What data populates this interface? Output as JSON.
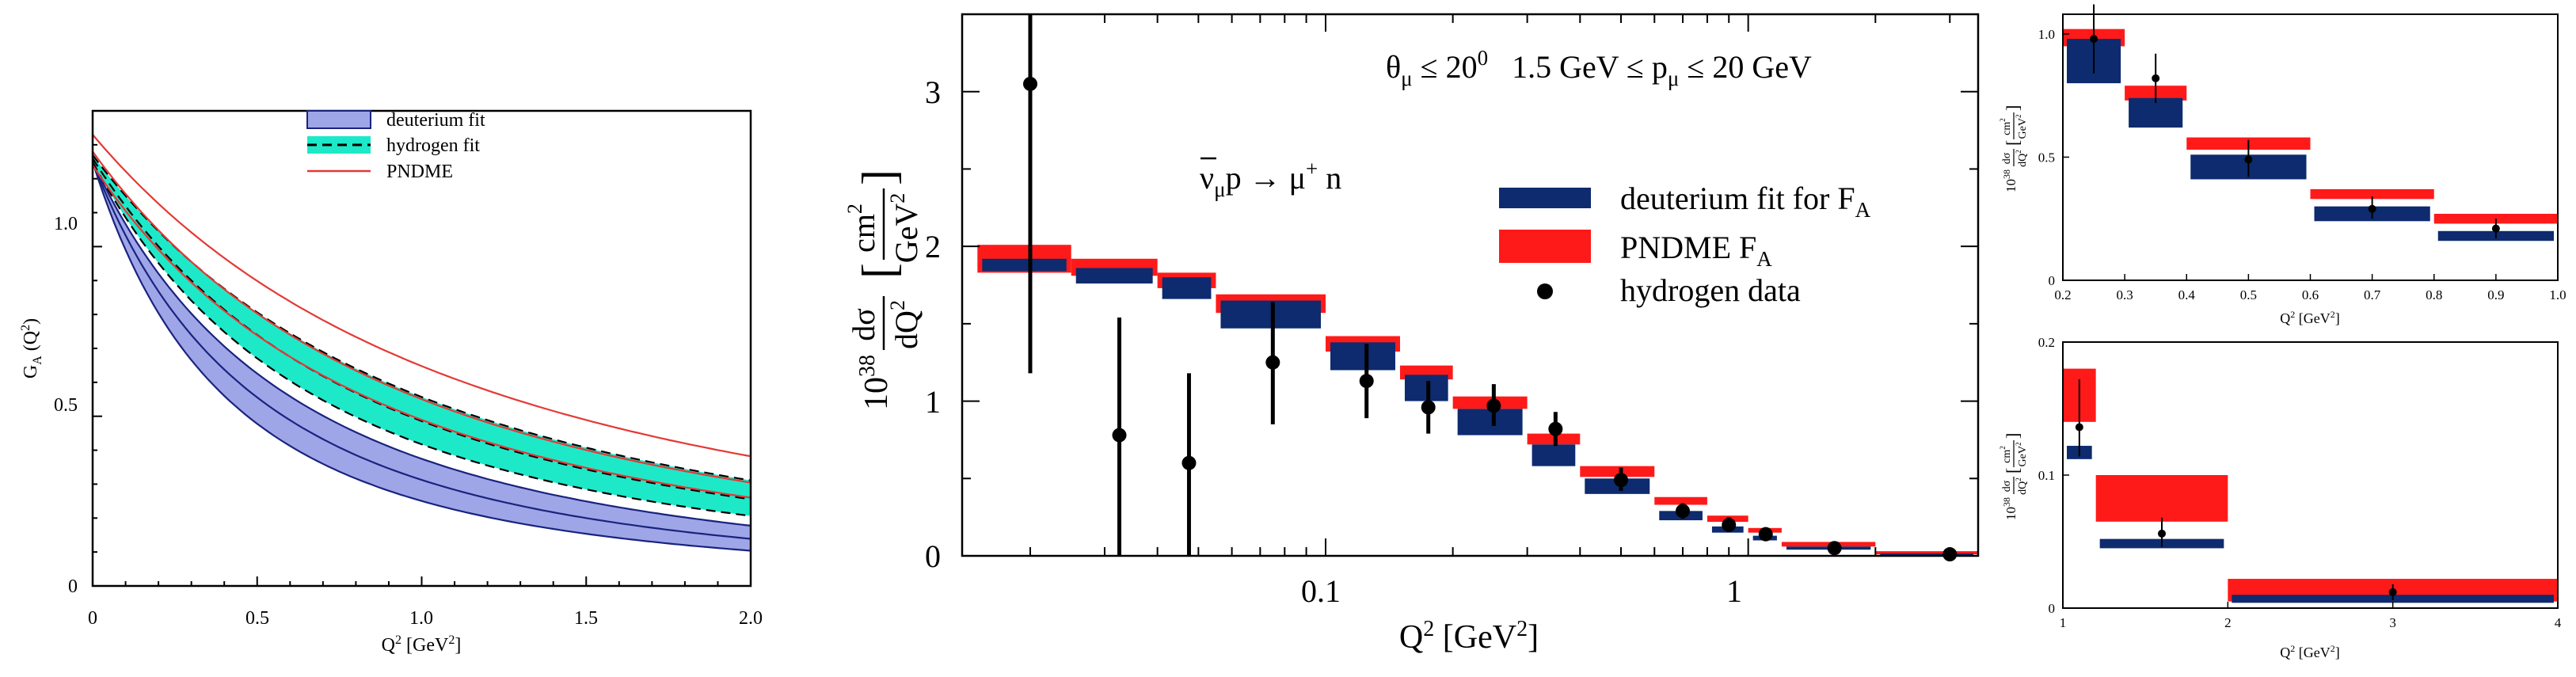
{
  "chart_data": [
    {
      "type": "line",
      "id": "left",
      "ylabel": "G",
      "ylabel_sub": "A",
      "ylabel_arg": " (Q",
      "ylabel_sup": "2",
      "ylabel_close": ")",
      "xlabel": "Q",
      "xlabel_sup": "2",
      "xlabel_unit": " [GeV",
      "xlabel_unit_sup": "2",
      "xlabel_close": "]",
      "xlim": [
        0,
        2
      ],
      "ylim": [
        0,
        1.4
      ],
      "xticks": [
        "0",
        "0.5",
        "1.0",
        "1.5",
        "2.0"
      ],
      "yticks": [
        "0",
        "0.5",
        "1.0"
      ],
      "legend": [
        "deuterium fit",
        "hydrogen fit",
        "PNDME"
      ],
      "colors": {
        "deuterium_fill": "#9fa6e8",
        "deuterium_line": "#1a237e",
        "hydrogen_fill": "#1de9c9",
        "hydrogen_line": "#000000",
        "pndme": "#e53935"
      },
      "series": [
        {
          "name": "deuterium fit (upper)",
          "g0": 1.25,
          "mA": 1.1,
          "x": [
            0,
            0.25,
            0.5,
            0.75,
            1.0,
            1.25,
            1.5,
            1.75,
            2.0
          ]
        },
        {
          "name": "deuterium fit (central)",
          "g0": 1.25,
          "mA": 1.0,
          "x": [
            0,
            0.25,
            0.5,
            0.75,
            1.0,
            1.25,
            1.5,
            1.75,
            2.0
          ]
        },
        {
          "name": "deuterium fit (lower)",
          "g0": 1.25,
          "mA": 0.9,
          "x": [
            0,
            0.25,
            0.5,
            0.75,
            1.0,
            1.25,
            1.5,
            1.75,
            2.0
          ]
        },
        {
          "name": "hydrogen fit (upper)",
          "g0": 1.27,
          "mA": 1.4
        },
        {
          "name": "hydrogen fit (central)",
          "g0": 1.26,
          "mA": 1.28
        },
        {
          "name": "hydrogen fit (lower)",
          "g0": 1.25,
          "mA": 1.17
        },
        {
          "name": "PNDME (upper)",
          "g0": 1.33,
          "mA": 1.52
        },
        {
          "name": "PNDME (central)",
          "g0": 1.28,
          "mA": 1.38
        },
        {
          "name": "PNDME (lower)",
          "g0": 1.24,
          "mA": 1.3
        }
      ]
    },
    {
      "type": "bar",
      "id": "middle",
      "xscale": "log",
      "xlim": [
        0.0138,
        3.5
      ],
      "ylim": [
        0,
        3.5
      ],
      "xticks": [
        "0.1",
        "1"
      ],
      "yticks": [
        "0",
        "1",
        "2",
        "3"
      ],
      "ylabel_prefix": "10",
      "ylabel_exp": "38",
      "ylabel_frac_num": "dσ",
      "ylabel_frac_den": "dQ",
      "ylabel_frac_den_sup": "2",
      "ylabel_unit_num": "cm",
      "ylabel_unit_num_sup": "2",
      "ylabel_unit_den": "GeV",
      "ylabel_unit_den_sup": "2",
      "xlabel": "Q",
      "xlabel_sup": "2",
      "xlabel_unit": " [GeV",
      "xlabel_unit_sup": "2",
      "xlabel_close": "]",
      "title_theta": "θ",
      "title_theta_sub": "μ",
      "title_theta_cond": " ≤ 20",
      "title_theta_sup": "0",
      "title_p_range": "1.5 GeV ≤ p",
      "title_p_sub": "μ",
      "title_p_cond": " ≤ 20 GeV",
      "reaction_nubar": "ν",
      "reaction_nu_sub": "μ",
      "reaction_p": "p → μ",
      "reaction_mu_sup": "+",
      "reaction_n": " n",
      "legend": {
        "deuterium": "deuterium fit for F",
        "deuterium_sub": "A",
        "pndme": "PNDME F",
        "pndme_sub": "A",
        "data": "hydrogen data"
      },
      "colors": {
        "deuterium": "#0d2b6e",
        "pndme": "#ff1a1a",
        "data": "#000000"
      },
      "bins": [
        {
          "lo": 0.015,
          "hi": 0.025,
          "deut": [
            1.84,
            1.92
          ],
          "pndme": [
            1.83,
            2.01
          ]
        },
        {
          "lo": 0.025,
          "hi": 0.04,
          "deut": [
            1.76,
            1.86
          ],
          "pndme": [
            1.81,
            1.92
          ]
        },
        {
          "lo": 0.04,
          "hi": 0.055,
          "deut": [
            1.66,
            1.8
          ],
          "pndme": [
            1.73,
            1.83
          ]
        },
        {
          "lo": 0.055,
          "hi": 0.1,
          "deut": [
            1.47,
            1.65
          ],
          "pndme": [
            1.57,
            1.69
          ]
        },
        {
          "lo": 0.1,
          "hi": 0.15,
          "deut": [
            1.2,
            1.38
          ],
          "pndme": [
            1.32,
            1.42
          ]
        },
        {
          "lo": 0.15,
          "hi": 0.2,
          "deut": [
            1.0,
            1.17
          ],
          "pndme": [
            1.14,
            1.23
          ]
        },
        {
          "lo": 0.2,
          "hi": 0.3,
          "deut": [
            0.78,
            0.95
          ],
          "pndme": [
            0.95,
            1.03
          ]
        },
        {
          "lo": 0.3,
          "hi": 0.4,
          "deut": [
            0.58,
            0.72
          ],
          "pndme": [
            0.72,
            0.79
          ]
        },
        {
          "lo": 0.4,
          "hi": 0.6,
          "deut": [
            0.4,
            0.5
          ],
          "pndme": [
            0.51,
            0.58
          ]
        },
        {
          "lo": 0.6,
          "hi": 0.8,
          "deut": [
            0.23,
            0.29
          ],
          "pndme": [
            0.33,
            0.38
          ]
        },
        {
          "lo": 0.8,
          "hi": 1.0,
          "deut": [
            0.15,
            0.19
          ],
          "pndme": [
            0.22,
            0.26
          ]
        },
        {
          "lo": 1.0,
          "hi": 1.2,
          "deut": [
            0.1,
            0.13
          ],
          "pndme": [
            0.15,
            0.18
          ]
        },
        {
          "lo": 1.2,
          "hi": 2.0,
          "deut": [
            0.04,
            0.06
          ],
          "pndme": [
            0.06,
            0.09
          ]
        },
        {
          "lo": 2.0,
          "hi": 4.0,
          "deut": [
            0.005,
            0.015
          ],
          "pndme": [
            0.01,
            0.03
          ]
        }
      ],
      "points": [
        {
          "x": 0.02,
          "y": 3.05,
          "lo": 1.18,
          "hi": 3.5
        },
        {
          "x": 0.0325,
          "y": 0.78,
          "lo": 0.0,
          "hi": 1.54
        },
        {
          "x": 0.0475,
          "y": 0.6,
          "lo": 0.0,
          "hi": 1.18
        },
        {
          "x": 0.075,
          "y": 1.25,
          "lo": 0.85,
          "hi": 1.64
        },
        {
          "x": 0.125,
          "y": 1.13,
          "lo": 0.89,
          "hi": 1.37
        },
        {
          "x": 0.175,
          "y": 0.96,
          "lo": 0.79,
          "hi": 1.13
        },
        {
          "x": 0.25,
          "y": 0.97,
          "lo": 0.84,
          "hi": 1.11
        },
        {
          "x": 0.35,
          "y": 0.82,
          "lo": 0.71,
          "hi": 0.93
        },
        {
          "x": 0.5,
          "y": 0.49,
          "lo": 0.42,
          "hi": 0.57
        },
        {
          "x": 0.7,
          "y": 0.29,
          "lo": 0.24,
          "hi": 0.34
        },
        {
          "x": 0.9,
          "y": 0.2,
          "lo": 0.16,
          "hi": 0.25
        },
        {
          "x": 1.1,
          "y": 0.14,
          "lo": 0.11,
          "hi": 0.17
        },
        {
          "x": 1.6,
          "y": 0.05,
          "lo": 0.03,
          "hi": 0.07
        },
        {
          "x": 3.0,
          "y": 0.01,
          "lo": 0.0,
          "hi": 0.02
        }
      ]
    },
    {
      "type": "bar",
      "id": "top-right",
      "xlim": [
        0.2,
        1.0
      ],
      "ylim": [
        0,
        1.08
      ],
      "xticks": [
        "0.2",
        "0.3",
        "0.4",
        "0.5",
        "0.6",
        "0.7",
        "0.8",
        "0.9",
        "1.0"
      ],
      "xtick_values": [
        0.2,
        0.3,
        0.4,
        0.5,
        0.6,
        0.7,
        0.8,
        0.9,
        1.0
      ],
      "yticks": [
        "0",
        "0.5",
        "1.0"
      ],
      "ytick_values": [
        0,
        0.5,
        1.0
      ],
      "xlabel": "Q",
      "xlabel_sup": "2",
      "xlabel_unit": " [GeV",
      "xlabel_unit_sup": "2",
      "xlabel_close": "]",
      "ylabel_prefix": "10",
      "ylabel_exp": "38",
      "ylabel_frac_num": "dσ",
      "ylabel_frac_den": "dQ",
      "ylabel_frac_den_sup": "2",
      "ylabel_unit_num": "cm",
      "ylabel_unit_num_sup": "2",
      "ylabel_unit_den": "GeV",
      "ylabel_unit_den_sup": "2",
      "bins": [
        {
          "lo": 0.2,
          "hi": 0.3,
          "deut": [
            0.8,
            0.98
          ],
          "pndme": [
            0.95,
            1.02
          ]
        },
        {
          "lo": 0.3,
          "hi": 0.4,
          "deut": [
            0.62,
            0.74
          ],
          "pndme": [
            0.73,
            0.79
          ]
        },
        {
          "lo": 0.4,
          "hi": 0.6,
          "deut": [
            0.41,
            0.51
          ],
          "pndme": [
            0.53,
            0.58
          ]
        },
        {
          "lo": 0.6,
          "hi": 0.8,
          "deut": [
            0.24,
            0.3
          ],
          "pndme": [
            0.33,
            0.37
          ]
        },
        {
          "lo": 0.8,
          "hi": 1.0,
          "deut": [
            0.16,
            0.2
          ],
          "pndme": [
            0.23,
            0.27
          ]
        }
      ],
      "points": [
        {
          "x": 0.25,
          "y": 0.98,
          "lo": 0.84,
          "hi": 1.12
        },
        {
          "x": 0.35,
          "y": 0.82,
          "lo": 0.72,
          "hi": 0.92
        },
        {
          "x": 0.5,
          "y": 0.49,
          "lo": 0.42,
          "hi": 0.57
        },
        {
          "x": 0.7,
          "y": 0.29,
          "lo": 0.25,
          "hi": 0.34
        },
        {
          "x": 0.9,
          "y": 0.21,
          "lo": 0.17,
          "hi": 0.25
        }
      ]
    },
    {
      "type": "bar",
      "id": "bottom-right",
      "xlim": [
        1.0,
        4.0
      ],
      "ylim": [
        0,
        0.2
      ],
      "xticks": [
        "1",
        "2",
        "3",
        "4"
      ],
      "xtick_values": [
        1,
        2,
        3,
        4
      ],
      "yticks": [
        "0",
        "0.1",
        "0.2"
      ],
      "ytick_values": [
        0,
        0.1,
        0.2
      ],
      "xlabel": "Q",
      "xlabel_sup": "2",
      "xlabel_unit": " [GeV",
      "xlabel_unit_sup": "2",
      "xlabel_close": "]",
      "ylabel_prefix": "10",
      "ylabel_exp": "38",
      "ylabel_frac_num": "dσ",
      "ylabel_frac_den": "dQ",
      "ylabel_frac_den_sup": "2",
      "ylabel_unit_num": "cm",
      "ylabel_unit_num_sup": "2",
      "ylabel_unit_den": "GeV",
      "ylabel_unit_den_sup": "2",
      "bins": [
        {
          "lo": 1.0,
          "hi": 1.2,
          "deut": [
            0.112,
            0.122
          ],
          "pndme": [
            0.14,
            0.18
          ]
        },
        {
          "lo": 1.2,
          "hi": 2.0,
          "deut": [
            0.045,
            0.052
          ],
          "pndme": [
            0.065,
            0.1
          ]
        },
        {
          "lo": 2.0,
          "hi": 4.0,
          "deut": [
            0.004,
            0.01
          ],
          "pndme": [
            0.005,
            0.022
          ]
        }
      ],
      "points": [
        {
          "x": 1.1,
          "y": 0.136,
          "lo": 0.114,
          "hi": 0.172
        },
        {
          "x": 1.6,
          "y": 0.056,
          "lo": 0.046,
          "hi": 0.068
        },
        {
          "x": 3.0,
          "y": 0.012,
          "lo": 0.006,
          "hi": 0.018
        }
      ]
    }
  ]
}
